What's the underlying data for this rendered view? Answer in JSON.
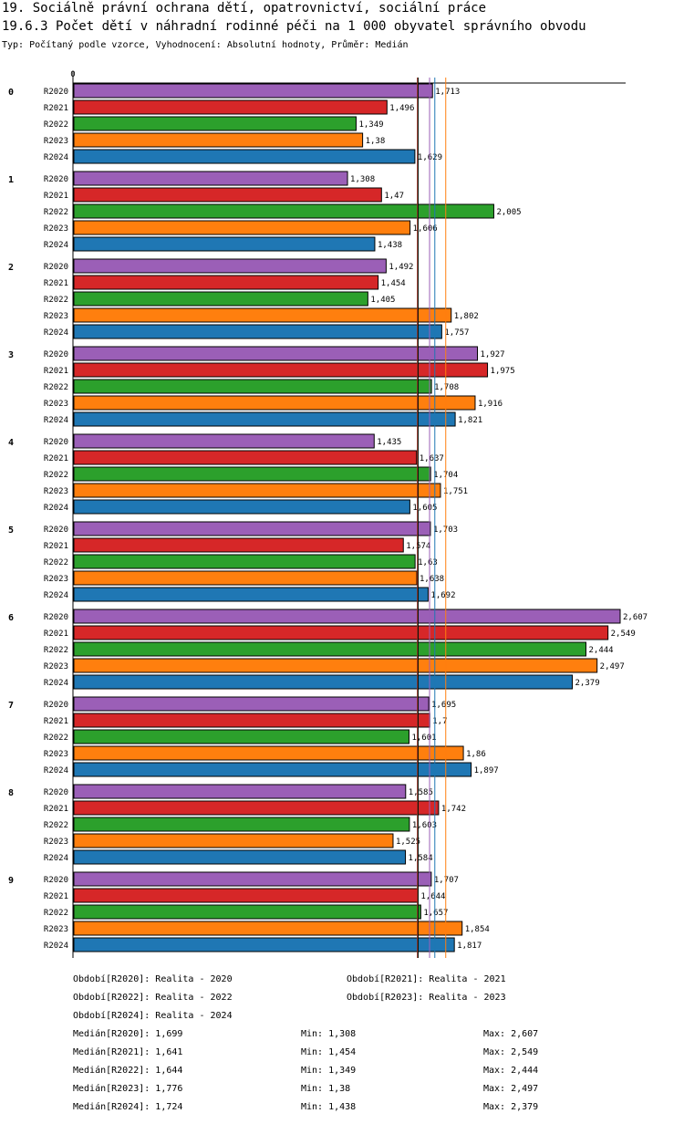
{
  "header": {
    "title1": "19. Sociálně právní ochrana dětí, opatrovnictví, sociální práce",
    "title2": "19.6.3 Počet dětí v náhradní rodinné péči na 1 000 obyvatel správního obvodu",
    "subtitle": "Typ: Počítaný podle vzorce, Vyhodnocení: Absolutní hodnoty, Průměr: Medián"
  },
  "chart_data": {
    "type": "bar",
    "orientation": "horizontal",
    "axis_zero_label": "0",
    "xlim": [
      0,
      2.607
    ],
    "groups": [
      "0",
      "1",
      "2",
      "3",
      "4",
      "5",
      "6",
      "7",
      "8",
      "9"
    ],
    "series": [
      {
        "name": "R2020",
        "color": "#9b5fb7",
        "values": [
          1.713,
          1.308,
          1.492,
          1.927,
          1.435,
          1.703,
          2.607,
          1.695,
          1.585,
          1.707
        ],
        "labels": [
          "1,713",
          "1,308",
          "1,492",
          "1,927",
          "1,435",
          "1,703",
          "2,607",
          "1,695",
          "1,585",
          "1,707"
        ]
      },
      {
        "name": "R2021",
        "color": "#d62728",
        "values": [
          1.496,
          1.47,
          1.454,
          1.975,
          1.637,
          1.574,
          2.549,
          1.7,
          1.742,
          1.644
        ],
        "labels": [
          "1,496",
          "1,47",
          "1,454",
          "1,975",
          "1,637",
          "1,574",
          "2,549",
          "1,7",
          "1,742",
          "1,644"
        ]
      },
      {
        "name": "R2022",
        "color": "#2ca02c",
        "values": [
          1.349,
          2.005,
          1.405,
          1.708,
          1.704,
          1.63,
          2.444,
          1.601,
          1.603,
          1.657
        ],
        "labels": [
          "1,349",
          "2,005",
          "1,405",
          "1,708",
          "1,704",
          "1,63",
          "2,444",
          "1,601",
          "1,603",
          "1,657"
        ]
      },
      {
        "name": "R2023",
        "color": "#ff7f0e",
        "values": [
          1.38,
          1.606,
          1.802,
          1.916,
          1.751,
          1.638,
          2.497,
          1.86,
          1.525,
          1.854
        ],
        "labels": [
          "1,38",
          "1,606",
          "1,802",
          "1,916",
          "1,751",
          "1,638",
          "2,497",
          "1,86",
          "1,525",
          "1,854"
        ]
      },
      {
        "name": "R2024",
        "color": "#1f77b4",
        "values": [
          1.629,
          1.438,
          1.757,
          1.821,
          1.605,
          1.692,
          2.379,
          1.897,
          1.584,
          1.817
        ],
        "labels": [
          "1,629",
          "1,438",
          "1,757",
          "1,821",
          "1,605",
          "1,692",
          "2,379",
          "1,897",
          "1,584",
          "1,817"
        ]
      }
    ],
    "median_lines": [
      {
        "name": "R2020",
        "value": 1.699,
        "color": "#9b5fb7"
      },
      {
        "name": "R2021",
        "value": 1.641,
        "color": "#d62728"
      },
      {
        "name": "R2022",
        "value": 1.644,
        "color": "#2ca02c"
      },
      {
        "name": "R2023",
        "value": 1.776,
        "color": "#ff7f0e"
      },
      {
        "name": "R2024",
        "value": 1.724,
        "color": "#1f77b4"
      },
      {
        "name": "overall",
        "value": 1.644,
        "color": "#000000"
      }
    ]
  },
  "legend": {
    "periods": [
      "Období[R2020]: Realita - 2020",
      "Období[R2021]: Realita - 2021",
      "Období[R2022]: Realita - 2022",
      "Období[R2023]: Realita - 2023",
      "Období[R2024]: Realita - 2024"
    ],
    "stats": [
      {
        "median": "Medián[R2020]: 1,699",
        "min": "Min: 1,308",
        "max": "Max: 2,607"
      },
      {
        "median": "Medián[R2021]: 1,641",
        "min": "Min: 1,454",
        "max": "Max: 2,549"
      },
      {
        "median": "Medián[R2022]: 1,644",
        "min": "Min: 1,349",
        "max": "Max: 2,444"
      },
      {
        "median": "Medián[R2023]: 1,776",
        "min": "Min: 1,38",
        "max": "Max: 2,497"
      },
      {
        "median": "Medián[R2024]: 1,724",
        "min": "Min: 1,438",
        "max": "Max: 2,379"
      }
    ]
  }
}
